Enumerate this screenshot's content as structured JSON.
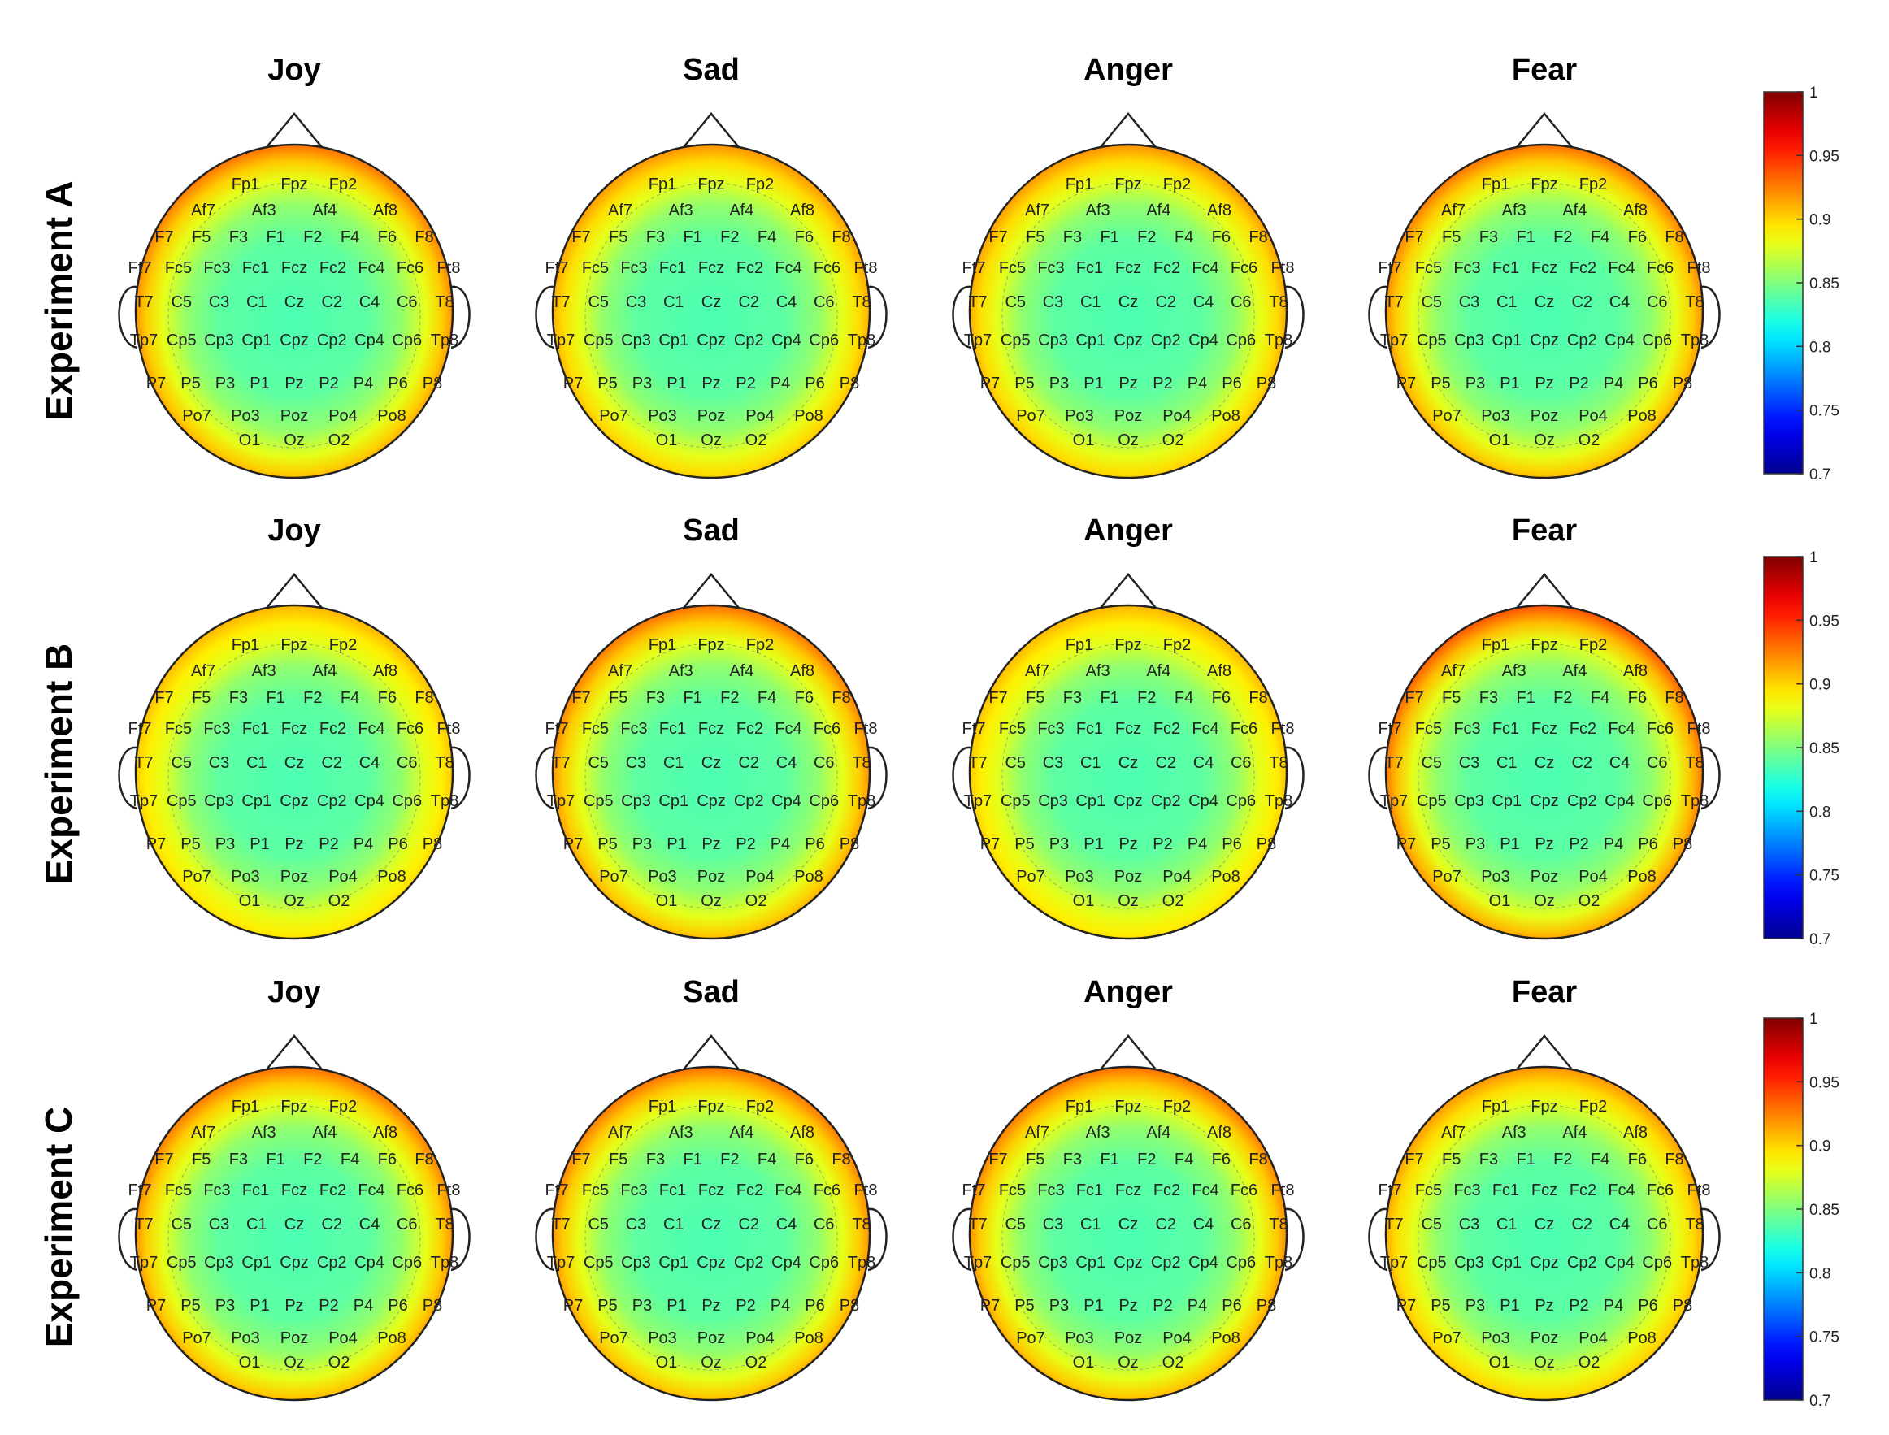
{
  "rows": [
    {
      "label": "Experiment A",
      "maps": [
        {
          "title": "Joy",
          "edge": 0.93
        },
        {
          "title": "Sad",
          "edge": 0.92
        },
        {
          "title": "Anger",
          "edge": 0.92
        },
        {
          "title": "Fear",
          "edge": 0.93
        }
      ]
    },
    {
      "label": "Experiment B",
      "maps": [
        {
          "title": "Joy",
          "edge": 0.91
        },
        {
          "title": "Sad",
          "edge": 0.93
        },
        {
          "title": "Anger",
          "edge": 0.91
        },
        {
          "title": "Fear",
          "edge": 0.94
        }
      ]
    },
    {
      "label": "Experiment C",
      "maps": [
        {
          "title": "Joy",
          "edge": 0.93
        },
        {
          "title": "Sad",
          "edge": 0.93
        },
        {
          "title": "Anger",
          "edge": 0.93
        },
        {
          "title": "Fear",
          "edge": 0.92
        }
      ]
    }
  ],
  "colorbar": {
    "ticks": [
      "1",
      "0.95",
      "0.9",
      "0.85",
      "0.8",
      "0.75",
      "0.7"
    ],
    "min": 0.7,
    "max": 1
  },
  "electrode_rows": [
    [
      "Fp1",
      "Fpz",
      "Fp2"
    ],
    [
      "Af7",
      "Af3",
      "Af4",
      "Af8"
    ],
    [
      "F7",
      "F5",
      "F3",
      "F1",
      "F2",
      "F4",
      "F6",
      "F8"
    ],
    [
      "Ft7",
      "Fc5",
      "Fc3",
      "Fc1",
      "Fcz",
      "Fc2",
      "Fc4",
      "Fc6",
      "Ft8"
    ],
    [
      "T7",
      "C5",
      "C3",
      "C1",
      "Cz",
      "C2",
      "C4",
      "C6",
      "T8"
    ],
    [
      "Tp7",
      "Cp5",
      "Cp3",
      "Cp1",
      "Cpz",
      "Cp2",
      "Cp4",
      "Cp6",
      "Tp8"
    ],
    [
      "P7",
      "P5",
      "P3",
      "P1",
      "Pz",
      "P2",
      "P4",
      "P6",
      "P8"
    ],
    [
      "Po7",
      "Po3",
      "Poz",
      "Po4",
      "Po8"
    ],
    [
      "O1",
      "Oz",
      "O2"
    ]
  ],
  "colors": {
    "low": "#00008f",
    "mid_low": "#00bfff",
    "mid": "#40e0c0",
    "high_mid": "#e6e600",
    "high": "#ff8c00",
    "top": "#8b0000"
  }
}
